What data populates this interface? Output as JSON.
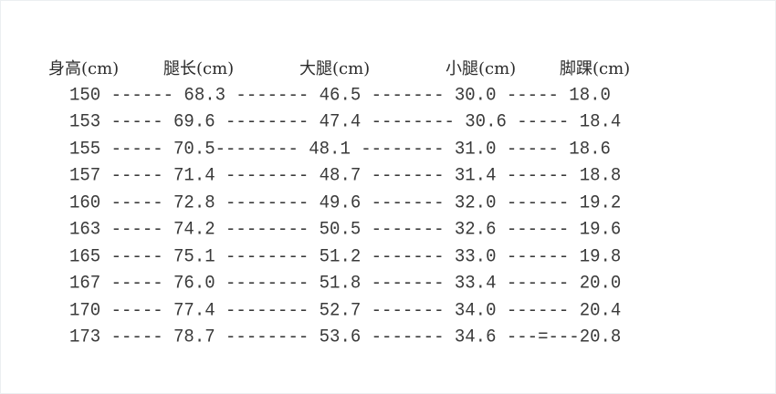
{
  "headers": [
    "身高(cm)",
    "腿长(cm)",
    "大腿(cm)",
    "小腿(cm)",
    "脚踝(cm)"
  ],
  "rows": [
    "150 ------ 68.3 ------- 46.5 ------- 30.0 ----- 18.0",
    "153 ----- 69.6 -------- 47.4 -------- 30.6 ----- 18.4",
    "155 ----- 70.5-------- 48.1 -------- 31.0 ----- 18.6",
    "157 ----- 71.4 -------- 48.7 ------- 31.4 ------ 18.8",
    "160 ----- 72.8 -------- 49.6 ------- 32.0 ------ 19.2",
    "163 ----- 74.2 -------- 50.5 ------- 32.6 ------ 19.6",
    "165 ----- 75.1 -------- 51.2 ------- 33.0 ------ 19.8",
    "167 ----- 76.0 -------- 51.8 ------- 33.4 ------ 20.0",
    "170 ----- 77.4 -------- 52.7 ------- 34.0 ------ 20.4",
    "173 ----- 78.7 -------- 53.6 ------- 34.6 ---=---20.8"
  ]
}
